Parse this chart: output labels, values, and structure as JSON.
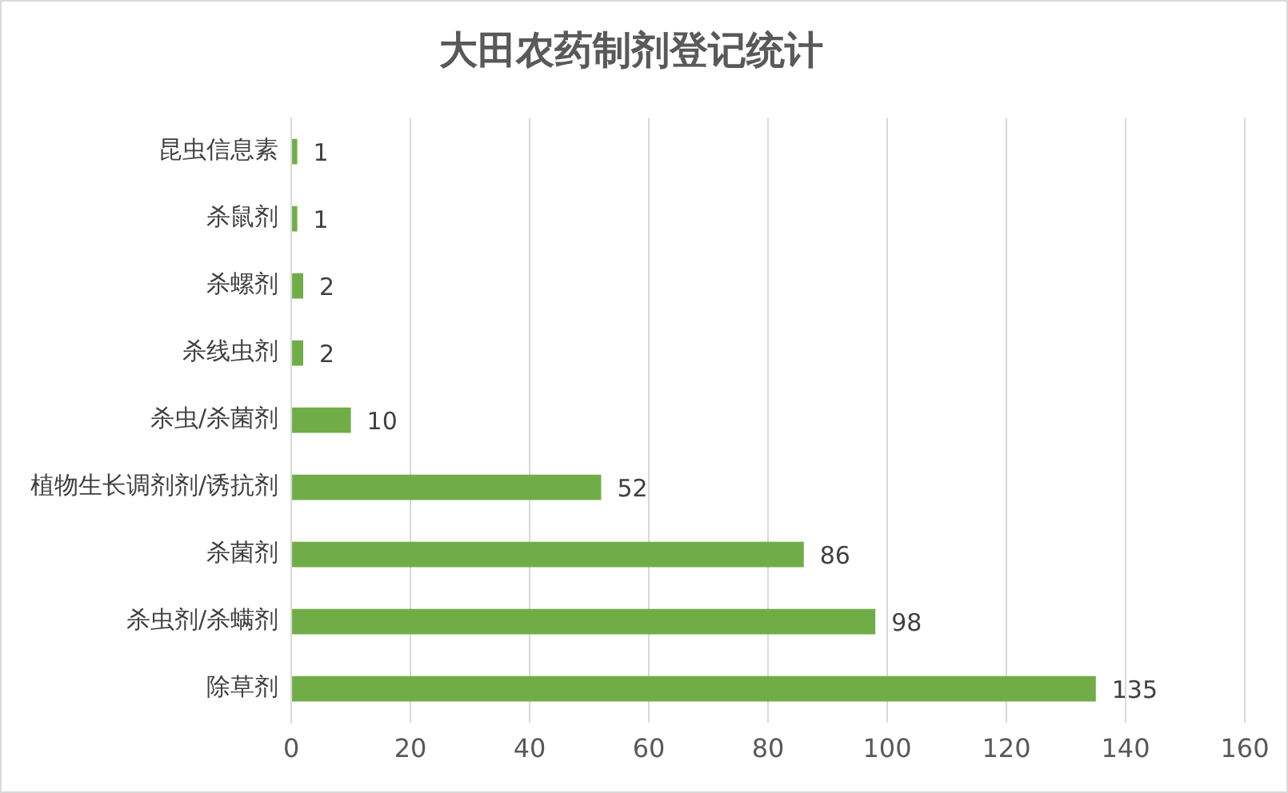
{
  "chart_data": {
    "type": "bar",
    "title": "大田农药制剂登记统计",
    "orientation": "horizontal",
    "categories": [
      "昆虫信息素",
      "杀鼠剂",
      "杀螺剂",
      "杀线虫剂",
      "杀虫/杀菌剂",
      "植物生长调剂剂/诱抗剂",
      "杀菌剂",
      "杀虫剂/杀螨剂",
      "除草剂"
    ],
    "values": [
      1,
      1,
      2,
      2,
      10,
      52,
      86,
      98,
      135
    ],
    "color": "#70ad47",
    "xlim": [
      0,
      160
    ],
    "xticks": [
      0,
      20,
      40,
      60,
      80,
      100,
      120,
      140,
      160
    ],
    "grid": "x",
    "data_labels": true
  }
}
